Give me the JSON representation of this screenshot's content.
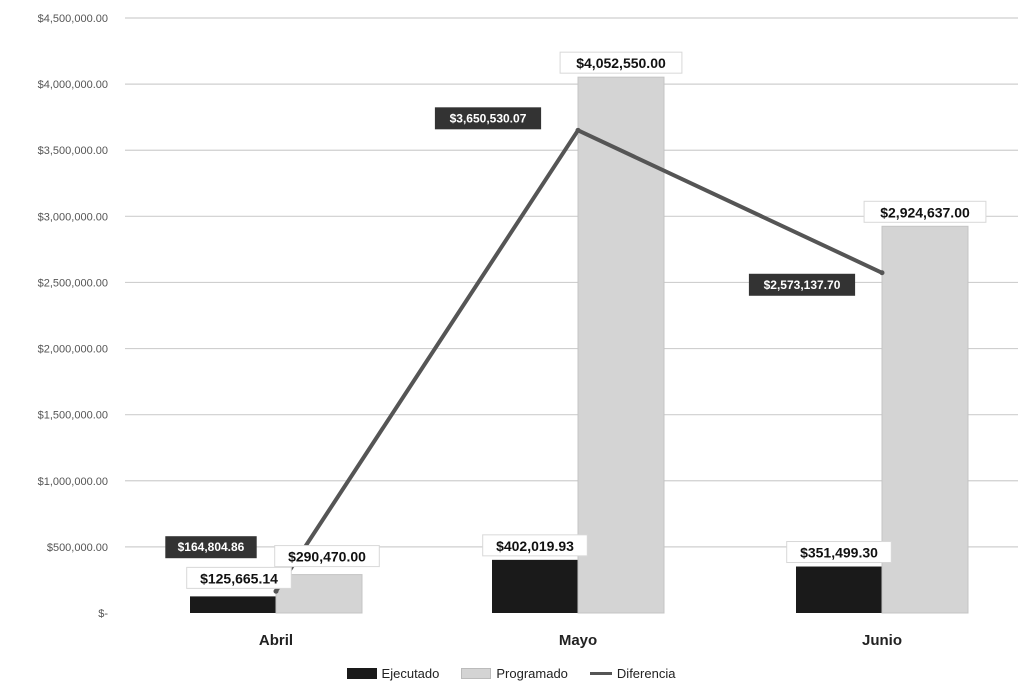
{
  "chart_data": {
    "type": "bar",
    "categories": [
      "Abril",
      "Mayo",
      "Junio"
    ],
    "series": [
      {
        "name": "Ejecutado",
        "kind": "bar",
        "color": "#1a1a1a",
        "values": [
          125665.14,
          402019.93,
          351499.3
        ],
        "labels": [
          "$125,665.14",
          "$402,019.93",
          "$351,499.30"
        ]
      },
      {
        "name": "Programado",
        "kind": "bar",
        "color": "#d4d4d4",
        "values": [
          290470.0,
          4052550.0,
          2924637.0
        ],
        "labels": [
          "$290,470.00",
          "$4,052,550.00",
          "$2,924,637.00"
        ]
      },
      {
        "name": "Diferencia",
        "kind": "line",
        "color": "#555555",
        "values": [
          164804.86,
          3650530.07,
          2573137.7
        ],
        "labels": [
          "$164,804.86",
          "$3,650,530.07",
          "$2,573,137.70"
        ]
      }
    ],
    "ylim": [
      0,
      4500000
    ],
    "yticks": [
      {
        "value": 0,
        "label": "$-"
      },
      {
        "value": 500000,
        "label": "$500,000.00"
      },
      {
        "value": 1000000,
        "label": "$1,000,000.00"
      },
      {
        "value": 1500000,
        "label": "$1,500,000.00"
      },
      {
        "value": 2000000,
        "label": "$2,000,000.00"
      },
      {
        "value": 2500000,
        "label": "$2,500,000.00"
      },
      {
        "value": 3000000,
        "label": "$3,000,000.00"
      },
      {
        "value": 3500000,
        "label": "$3,500,000.00"
      },
      {
        "value": 4000000,
        "label": "$4,000,000.00"
      },
      {
        "value": 4500000,
        "label": "$4,500,000.00"
      }
    ],
    "grid": true,
    "legend_position": "bottom"
  }
}
